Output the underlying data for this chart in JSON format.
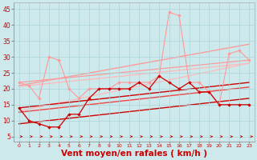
{
  "background_color": "#cde9ec",
  "grid_color": "#aad4d8",
  "xlabel": "Vent moyen/en rafales ( km/h )",
  "xlabel_color": "#cc0000",
  "xlabel_fontsize": 7.5,
  "ylabel_ticks": [
    5,
    10,
    15,
    20,
    25,
    30,
    35,
    40,
    45
  ],
  "xlim": [
    -0.5,
    23.5
  ],
  "ylim": [
    3.5,
    47
  ],
  "xtick_labels": [
    "0",
    "1",
    "2",
    "3",
    "4",
    "5",
    "6",
    "7",
    "8",
    "9",
    "10",
    "11",
    "12",
    "13",
    "14",
    "15",
    "16",
    "17",
    "18",
    "19",
    "20",
    "21",
    "22",
    "23"
  ],
  "line_pink_y": [
    22,
    21,
    17,
    30,
    29,
    20,
    17,
    20,
    20,
    20,
    22,
    22,
    22,
    22,
    24,
    44,
    43,
    22,
    22,
    19,
    15,
    31,
    32,
    29
  ],
  "line_dark_y": [
    14,
    10,
    9,
    8,
    8,
    12,
    12,
    17,
    20,
    20,
    20,
    20,
    22,
    20,
    24,
    22,
    20,
    22,
    19,
    19,
    15,
    15,
    15,
    15
  ],
  "line_reg1": [
    14,
    22
  ],
  "line_reg2": [
    21,
    34
  ],
  "line_reg3": [
    22,
    29
  ],
  "line_reg4": [
    13,
    28
  ],
  "line_reg5": [
    9,
    17
  ],
  "color_dark_red": "#cc0000",
  "color_mid_red": "#ee4444",
  "color_light_pink": "#ff9999",
  "color_lightest_pink": "#ffbbbb"
}
